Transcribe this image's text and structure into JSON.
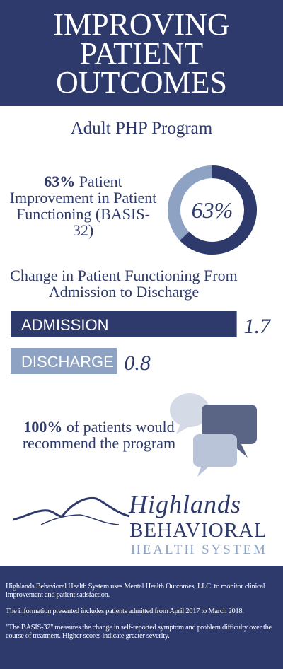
{
  "header": {
    "title_lines": [
      "IMPROVING",
      "PATIENT",
      "OUTCOMES"
    ]
  },
  "subtitle": "Adult PHP Program",
  "chart_data": [
    {
      "type": "donut",
      "values": [
        63
      ],
      "value_labels": [
        "63%"
      ],
      "caption": "Patient Improvement in Patient Functioning (BASIS-32)",
      "color": "#2e3a6b",
      "track_color": "#8ea2c3"
    },
    {
      "type": "bar",
      "title": "Change in Patient Functioning From Admission to Discharge",
      "categories": [
        "ADMISSION",
        "DISCHARGE"
      ],
      "values": [
        1.7,
        0.8
      ],
      "colors": [
        "#2e3a6b",
        "#8ea2c3"
      ]
    }
  ],
  "recommend": {
    "value_label": "100%",
    "text": "of patients would recommend the program"
  },
  "logo": {
    "name": "Highlands",
    "line2": "BEHAVIORAL",
    "line3": "HEALTH SYSTEM"
  },
  "footer": {
    "paragraphs": [
      "Highlands Behavioral Health System uses Mental Health Outcomes, LLC. to monitor clinical improvement and patient satisfaction.",
      "The information presented includes patients admitted from April 2017 to March 2018.",
      "\"The BASIS-32\" measures the change in self-reported symptom and problem difficulty over the course of treatment. Higher scores indicate greater severity."
    ]
  }
}
